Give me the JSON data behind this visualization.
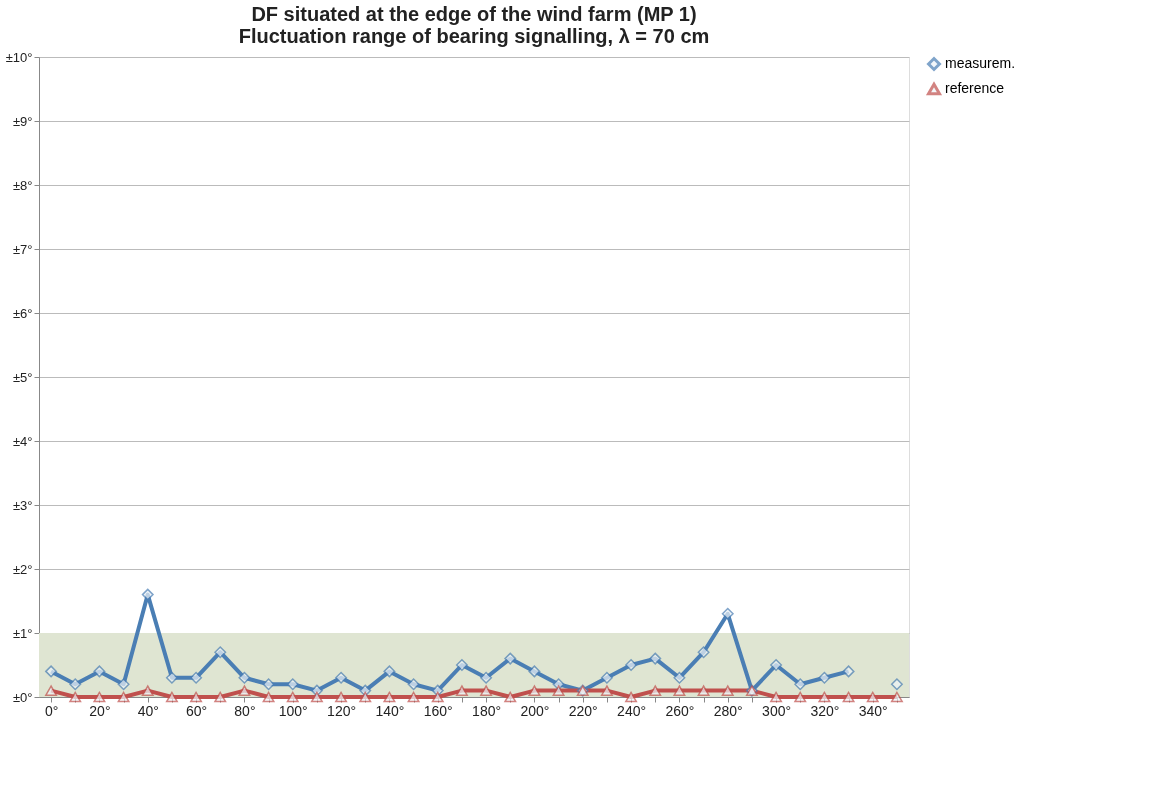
{
  "chart_data": {
    "type": "line",
    "title": "DF situated at the edge of the wind farm (MP 1)\nFluctuation range of bearing signalling, λ = 70 cm",
    "categories": [
      "0°",
      null,
      "20°",
      null,
      "40°",
      null,
      "60°",
      null,
      "80°",
      null,
      "100°",
      null,
      "120°",
      null,
      "140°",
      null,
      "160°",
      null,
      "180°",
      null,
      "200°",
      null,
      "220°",
      null,
      "240°",
      null,
      "260°",
      null,
      "280°",
      null,
      "300°",
      null,
      "320°",
      null,
      "340°",
      null
    ],
    "series": [
      {
        "name": "measurem.",
        "color": "#4a7eb4",
        "marker": "diamond",
        "values": [
          0.4,
          0.2,
          0.4,
          0.2,
          1.6,
          0.3,
          0.3,
          0.7,
          0.3,
          0.2,
          0.2,
          0.1,
          0.3,
          0.1,
          0.4,
          0.2,
          0.1,
          0.5,
          0.3,
          0.6,
          0.4,
          0.2,
          0.1,
          0.3,
          0.5,
          0.6,
          0.3,
          0.7,
          1.3,
          0.1,
          0.5,
          0.2,
          0.3,
          0.4,
          null,
          0.2
        ]
      },
      {
        "name": "reference",
        "color": "#c0504d",
        "marker": "triangle",
        "values": [
          0.1,
          0,
          0,
          0,
          0.1,
          0,
          0,
          0,
          0.1,
          0,
          0,
          0,
          0,
          0,
          0,
          0,
          0,
          0.1,
          0.1,
          0,
          0.1,
          0.1,
          0.1,
          0.1,
          0,
          0.1,
          0.1,
          0.1,
          0.1,
          0.1,
          0,
          0,
          0,
          0,
          0,
          0
        ]
      }
    ],
    "ylim": [
      0,
      10
    ],
    "yticks": [
      {
        "value": 0,
        "label": "±0°"
      },
      {
        "value": 1,
        "label": "±1°"
      },
      {
        "value": 2,
        "label": "±2°"
      },
      {
        "value": 3,
        "label": "±3°"
      },
      {
        "value": 4,
        "label": "±4°"
      },
      {
        "value": 5,
        "label": "±5°"
      },
      {
        "value": 6,
        "label": "±6°"
      },
      {
        "value": 7,
        "label": "±7°"
      },
      {
        "value": 8,
        "label": "±8°"
      },
      {
        "value": 9,
        "label": "±9°"
      },
      {
        "value": 10,
        "label": "±10°"
      }
    ],
    "bands": [
      {
        "axis": "y",
        "from": 0,
        "to": 1,
        "color": "#dfe5d2"
      }
    ],
    "grid": "y",
    "legend": "right",
    "line_style": "solid"
  }
}
